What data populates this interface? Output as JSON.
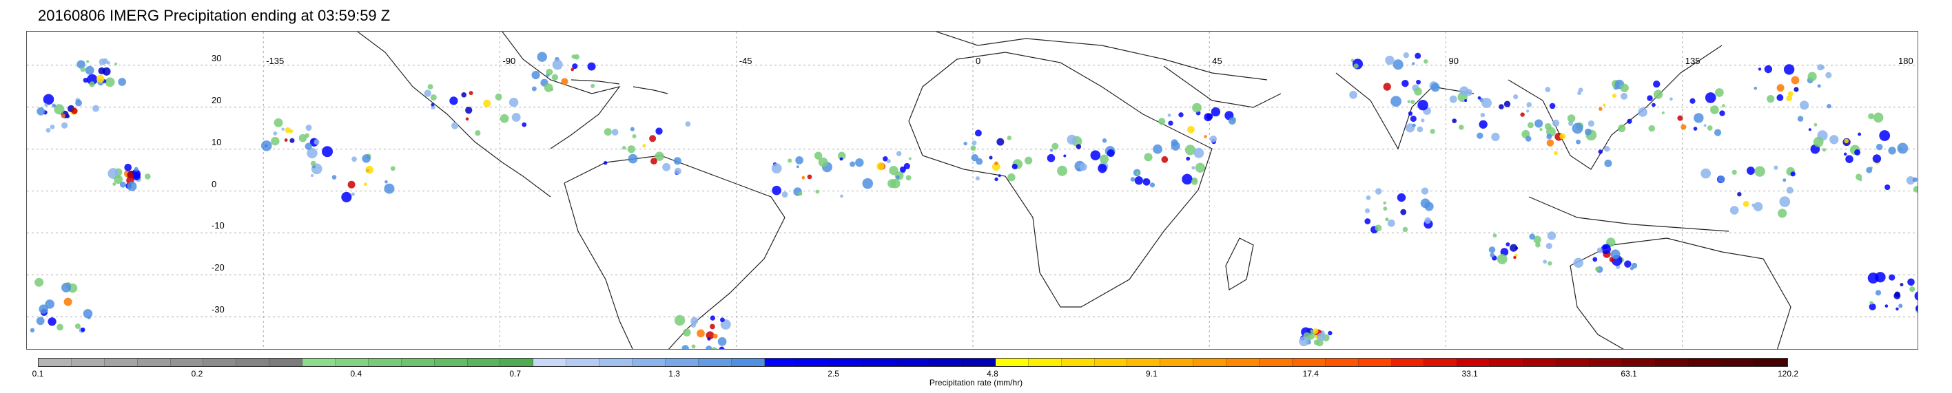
{
  "title": "20160806 IMERG Precipitation ending at 03:59:59 Z",
  "map": {
    "lat_ticks": [
      "30",
      "20",
      "10",
      "0",
      "-10",
      "-20",
      "-30"
    ],
    "lon_ticks": [
      "-135",
      "-90",
      "-45",
      "0",
      "45",
      "90",
      "135",
      "180"
    ]
  },
  "colorbar": {
    "label": "Precipitation rate (mm/hr)",
    "ticks": [
      "0.1",
      "0.2",
      "0.4",
      "0.7",
      "1.3",
      "2.5",
      "4.8",
      "9.1",
      "17.4",
      "33.1",
      "63.1",
      "120.2"
    ],
    "colors": [
      "#b4b4b4",
      "#acacac",
      "#a4a4a4",
      "#9c9c9c",
      "#949494",
      "#8c8c8c",
      "#848484",
      "#7c7c7c",
      "#8cdc8c",
      "#82d482",
      "#78cc78",
      "#6ec46e",
      "#64bc64",
      "#5ab45a",
      "#50ac50",
      "#c8d8f8",
      "#b4ccf4",
      "#a0c0f0",
      "#8cb4ec",
      "#78a8e8",
      "#649ce4",
      "#5090e0",
      "#0000ff",
      "#0000f4",
      "#0000e8",
      "#0000dc",
      "#0000d0",
      "#0000c4",
      "#0000b8",
      "#ffff00",
      "#ffee00",
      "#ffdc00",
      "#ffcc00",
      "#ffbb00",
      "#ffaa00",
      "#ff9900",
      "#ff8800",
      "#ff7700",
      "#ff6600",
      "#ff5500",
      "#ff4400",
      "#ee2200",
      "#dd1100",
      "#cc0000",
      "#bb0000",
      "#aa0000",
      "#990000",
      "#880000",
      "#770000",
      "#660000",
      "#5a0000",
      "#500000",
      "#460000"
    ]
  }
}
